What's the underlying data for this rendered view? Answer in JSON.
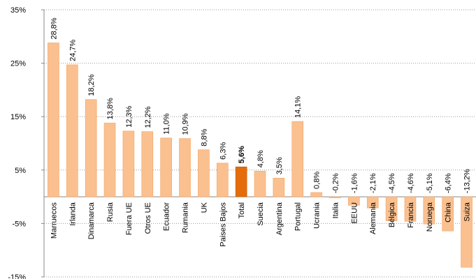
{
  "chart_data": {
    "type": "bar",
    "categories": [
      "Marruecos",
      "Irlanda",
      "Dinamarca",
      "Rusia",
      "Fuera UE",
      "Otros UE",
      "Ecuador",
      "Rumania",
      "UK",
      "Paises Bajos",
      "Total",
      "Suecia",
      "Argentina",
      "Portugal",
      "Ucrania",
      "Italia",
      "EEUU",
      "Alemania",
      "Bélgica",
      "Francia",
      "Noruega",
      "China",
      "Suiza"
    ],
    "values": [
      28.8,
      24.7,
      18.2,
      13.8,
      12.3,
      12.2,
      11.0,
      10.9,
      8.8,
      6.3,
      5.6,
      4.8,
      3.5,
      14.1,
      0.8,
      -0.2,
      -1.6,
      -2.1,
      -4.5,
      -4.6,
      -5.1,
      -6.4,
      -13.2
    ],
    "value_labels": [
      "28,8%",
      "24,7%",
      "18,2%",
      "13,8%",
      "12,3%",
      "12,2%",
      "11,0%",
      "10,9%",
      "8,8%",
      "6,3%",
      "5,6%",
      "4,8%",
      "3,5%",
      "14,1%",
      "0,8%",
      "-0,2%",
      "-1,6%",
      "-2,1%",
      "-4,5%",
      "-4,6%",
      "-5,1%",
      "-6,4%",
      "-13,2%"
    ],
    "color": "#fac090",
    "highlight": {
      "category": "Total",
      "color": "#e46c0a"
    },
    "ylim": [
      -15,
      35
    ],
    "yticks": [
      {
        "value": -15,
        "label": "-15%"
      },
      {
        "value": -5,
        "label": "-5%"
      },
      {
        "value": 5,
        "label": "5%"
      },
      {
        "value": 15,
        "label": "15%"
      },
      {
        "value": 25,
        "label": "25%"
      },
      {
        "value": 35,
        "label": "35%"
      }
    ],
    "grid": true
  }
}
